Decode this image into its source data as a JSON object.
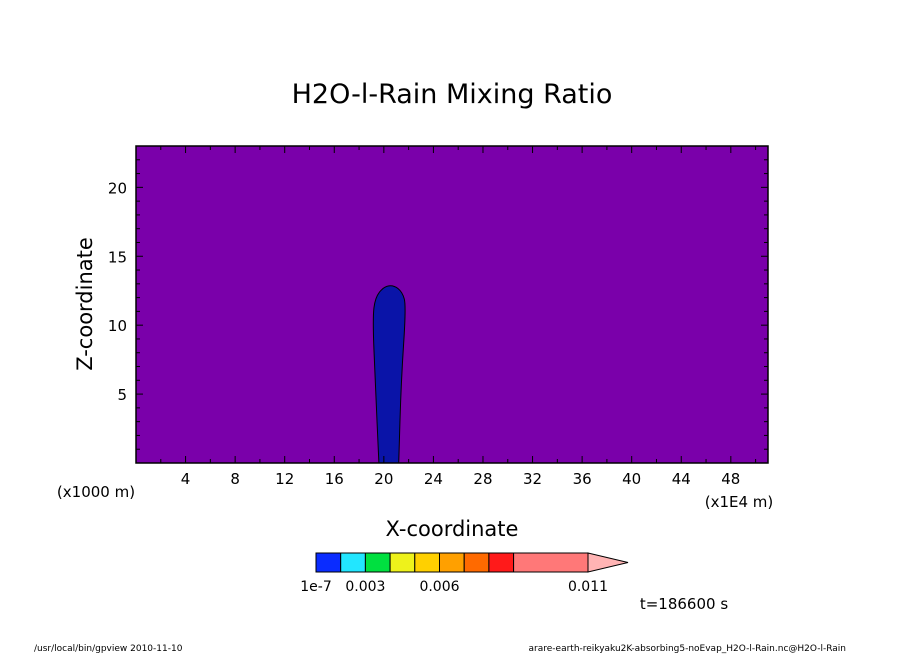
{
  "chart_data": {
    "type": "heatmap",
    "title": "H2O-l-Rain Mixing Ratio",
    "xlabel": "X-coordinate",
    "ylabel": "Z-coordinate",
    "x_unit": "(x1E4 m)",
    "y_unit": "(x1000 m)",
    "xlim": [
      0,
      51
    ],
    "ylim": [
      0,
      23
    ],
    "x_ticks": [
      4,
      8,
      12,
      16,
      20,
      24,
      28,
      32,
      36,
      40,
      44,
      48
    ],
    "y_ticks": [
      5,
      10,
      15,
      20
    ],
    "background_color": "#7a00aa",
    "region": {
      "label": "rain column",
      "color": "#0a14a8",
      "outline": [
        [
          19.6,
          0
        ],
        [
          19.3,
          6
        ],
        [
          19.1,
          10.5
        ],
        [
          19.3,
          12
        ],
        [
          20.0,
          12.8
        ],
        [
          20.8,
          12.9
        ],
        [
          21.5,
          12.4
        ],
        [
          21.8,
          11.4
        ],
        [
          21.4,
          6
        ],
        [
          21.2,
          0
        ]
      ]
    },
    "colorbar": {
      "colors": [
        "#0a2cff",
        "#22e6ff",
        "#00e040",
        "#eef21b",
        "#ffd000",
        "#ffa000",
        "#ff6a00",
        "#ff1a1a",
        "#ff7878",
        "#ffb4b4"
      ],
      "tick_labels": [
        {
          "label": "1e-7",
          "boundary": 0
        },
        {
          "label": "0.003",
          "boundary": 2
        },
        {
          "label": "0.006",
          "boundary": 5
        },
        {
          "label": "0.011",
          "boundary": 9
        }
      ]
    }
  },
  "time_label": "t=186600 s",
  "footer": {
    "left": "/usr/local/bin/gpview   2010-11-10",
    "right": "arare-earth-reikyaku2K-absorbing5-noEvap_H2O-l-Rain.nc@H2O-l-Rain"
  }
}
